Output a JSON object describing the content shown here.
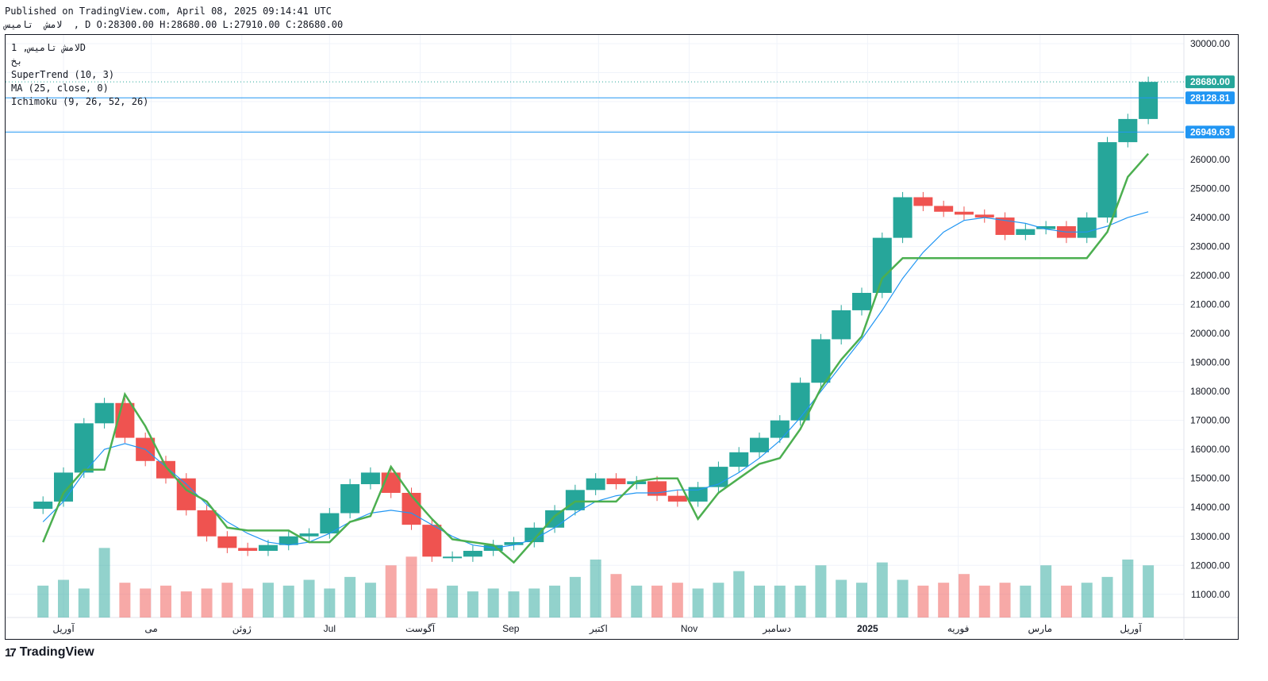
{
  "header": {
    "published_line": "Published on TradingView.com, April 08, 2025 09:14:41 UTC",
    "ohlc_line": "لامش  تامیس  , D O:28300.00 H:28680.00 L:27910.00 C:28680.00"
  },
  "legend": {
    "symbol": "لامش تامیس, 1D",
    "exchange": "بخ",
    "indicator_1": "SuperTrend (10, 3)",
    "indicator_2": "MA (25, close, 0)",
    "indicator_3": "Ichimoku (9, 26, 52, 26)"
  },
  "brand": {
    "logo": "17",
    "name": "TradingView"
  },
  "colors": {
    "up": "#26a69a",
    "down": "#ef5350",
    "supertrend_up": "#4caf50",
    "supertrend_down": "#a0524d",
    "ma": "#2196f3",
    "cloud_bull": "#e8f5e9",
    "cloud_bear": "#fde2e1",
    "price_label": "#26a69a",
    "line_label": "#2196f3"
  },
  "chart_data": {
    "type": "candlestick",
    "title": "لامش تامیس, 1D",
    "x_ticks": [
      "آوریل",
      "می",
      "ژوئن",
      "Jul",
      "آگوست",
      "Sep",
      "اکتبر",
      "Nov",
      "دسامبر",
      "2025",
      "فوریه",
      "مارس",
      "آوریل"
    ],
    "x_tick_dates": [
      "2024-04-01",
      "2024-05-01",
      "2024-06-01",
      "2024-07-01",
      "2024-08-01",
      "2024-09-01",
      "2024-10-01",
      "2024-11-01",
      "2024-12-01",
      "2025-01-01",
      "2025-02-01",
      "2025-03-01",
      "2025-04-01"
    ],
    "y_ticks": [
      11000,
      12000,
      13000,
      14000,
      15000,
      16000,
      17000,
      18000,
      19000,
      20000,
      21000,
      22000,
      23000,
      24000,
      25000,
      26000,
      27000,
      28000,
      29000,
      30000
    ],
    "ylim": [
      10200,
      30300
    ],
    "last_close": 28680,
    "horizontal_lines": [
      28128.81,
      26949.63
    ],
    "close_series": {
      "dates": [
        "2024-03-25",
        "2024-04-01",
        "2024-04-08",
        "2024-04-15",
        "2024-04-22",
        "2024-04-29",
        "2024-05-06",
        "2024-05-13",
        "2024-05-20",
        "2024-05-27",
        "2024-06-03",
        "2024-06-10",
        "2024-06-17",
        "2024-06-24",
        "2024-07-01",
        "2024-07-08",
        "2024-07-15",
        "2024-07-22",
        "2024-07-29",
        "2024-08-05",
        "2024-08-12",
        "2024-08-19",
        "2024-08-26",
        "2024-09-02",
        "2024-09-09",
        "2024-09-16",
        "2024-09-23",
        "2024-09-30",
        "2024-10-07",
        "2024-10-14",
        "2024-10-21",
        "2024-10-28",
        "2024-11-04",
        "2024-11-11",
        "2024-11-18",
        "2024-11-25",
        "2024-12-02",
        "2024-12-09",
        "2024-12-16",
        "2024-12-23",
        "2024-12-30",
        "2025-01-06",
        "2025-01-13",
        "2025-01-20",
        "2025-01-27",
        "2025-02-03",
        "2025-02-10",
        "2025-02-17",
        "2025-02-24",
        "2025-03-03",
        "2025-03-10",
        "2025-03-17",
        "2025-03-24",
        "2025-03-31",
        "2025-04-07"
      ],
      "values": [
        14200,
        15200,
        16900,
        17600,
        16400,
        15600,
        15000,
        13900,
        13000,
        12600,
        12500,
        12700,
        13000,
        13100,
        13800,
        14800,
        15200,
        14500,
        13400,
        12300,
        12300,
        12500,
        12700,
        12800,
        13300,
        13900,
        14600,
        15000,
        14800,
        14900,
        14400,
        14200,
        14700,
        15400,
        15900,
        16400,
        17000,
        18300,
        19800,
        20800,
        21400,
        23300,
        24700,
        24400,
        24200,
        24100,
        24000,
        23400,
        23600,
        23700,
        23300,
        24000,
        26600,
        27400,
        28680
      ]
    },
    "volume_series": {
      "unit": "price-scale overlay",
      "values": [
        11300,
        11500,
        11200,
        12600,
        11400,
        11200,
        11300,
        11100,
        11200,
        11400,
        11200,
        11400,
        11300,
        11500,
        11200,
        11600,
        11400,
        12000,
        12300,
        11200,
        11300,
        11100,
        11200,
        11100,
        11200,
        11300,
        11600,
        12200,
        11700,
        11300,
        11300,
        11400,
        11200,
        11400,
        11800,
        11300,
        11300,
        11300,
        12000,
        11500,
        11400,
        12100,
        11500,
        11300,
        11400,
        11700,
        11300,
        11400,
        11300,
        12000,
        11300,
        11400,
        11600,
        12200,
        12000
      ]
    },
    "series": [
      {
        "name": "SuperTrend (10, 3)",
        "values": [
          12800,
          14500,
          15300,
          15300,
          17900,
          16800,
          15400,
          14600,
          14200,
          13300,
          13200,
          13200,
          13200,
          12800,
          12800,
          13500,
          13700,
          15400,
          14400,
          13600,
          12900,
          12800,
          12700,
          12100,
          12900,
          13700,
          14200,
          14200,
          14200,
          14900,
          15000,
          15000,
          13600,
          14500,
          15000,
          15500,
          15700,
          16700,
          18100,
          19100,
          19900,
          21900,
          22600,
          22600,
          22600,
          22600,
          22600,
          22600,
          22600,
          22600,
          22600,
          22600,
          23500,
          25400,
          26200
        ]
      },
      {
        "name": "MA (25, close, 0)",
        "values": [
          13500,
          14200,
          15200,
          16000,
          16200,
          16000,
          15400,
          14800,
          14100,
          13500,
          13100,
          12800,
          12700,
          12800,
          13100,
          13500,
          13800,
          13900,
          13800,
          13400,
          13000,
          12700,
          12600,
          12700,
          12900,
          13300,
          13800,
          14200,
          14400,
          14500,
          14500,
          14600,
          14600,
          14800,
          15200,
          15700,
          16300,
          17100,
          18000,
          18900,
          19800,
          20800,
          21900,
          22800,
          23500,
          23900,
          24000,
          23900,
          23800,
          23600,
          23500,
          23500,
          23700,
          24000,
          24200
        ]
      }
    ]
  }
}
